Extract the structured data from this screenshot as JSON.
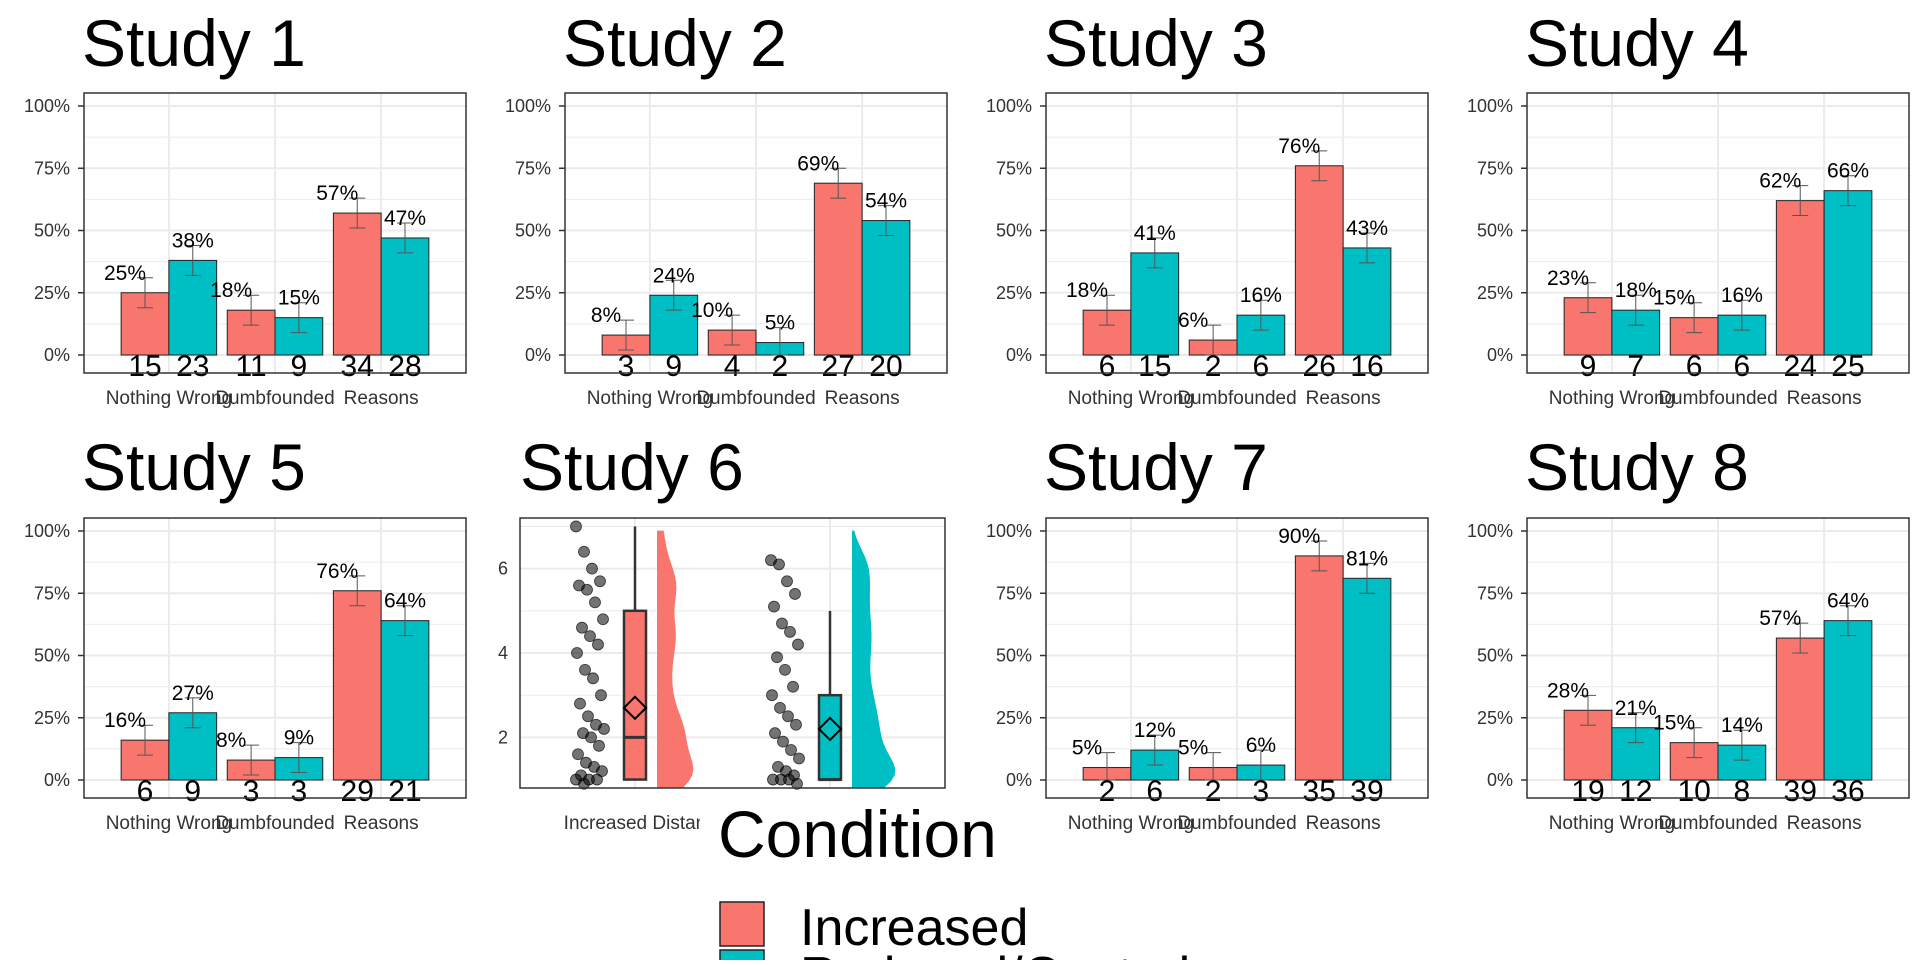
{
  "colors": {
    "increased": "#F8766D",
    "reduced": "#00BFC4",
    "grid": "#EBEBEB",
    "frame": "#333333",
    "errorbar": "#555555"
  },
  "legend": {
    "title": "Condition",
    "items": [
      "Increased",
      "Reduced/Control"
    ]
  },
  "chart_data": [
    {
      "type": "bar",
      "title": "Study 1",
      "categories": [
        "Nothing Wrong",
        "Dumbfounded",
        "Reasons"
      ],
      "ylim": [
        0,
        1
      ],
      "yticks": [
        "0%",
        "25%",
        "50%",
        "75%",
        "100%"
      ],
      "series": [
        {
          "values": [
            0.25,
            0.18,
            0.57
          ],
          "labels": [
            "25%",
            "18%",
            "57%"
          ],
          "counts": [
            15,
            11,
            34
          ]
        },
        {
          "values": [
            0.38,
            0.15,
            0.47
          ],
          "labels": [
            "38%",
            "15%",
            "47%"
          ],
          "counts": [
            23,
            9,
            28
          ]
        }
      ]
    },
    {
      "type": "bar",
      "title": "Study 2",
      "categories": [
        "Nothing Wrong",
        "Dumbfounded",
        "Reasons"
      ],
      "ylim": [
        0,
        1
      ],
      "yticks": [
        "0%",
        "25%",
        "50%",
        "75%",
        "100%"
      ],
      "series": [
        {
          "values": [
            0.08,
            0.1,
            0.69
          ],
          "labels": [
            "8%",
            "10%",
            "69%"
          ],
          "counts": [
            3,
            4,
            27
          ]
        },
        {
          "values": [
            0.24,
            0.05,
            0.54
          ],
          "labels": [
            "24%",
            "5%",
            "54%"
          ],
          "counts": [
            9,
            2,
            20
          ]
        }
      ]
    },
    {
      "type": "bar",
      "title": "Study 3",
      "categories": [
        "Nothing Wrong",
        "Dumbfounded",
        "Reasons"
      ],
      "ylim": [
        0,
        1
      ],
      "yticks": [
        "0%",
        "25%",
        "50%",
        "75%",
        "100%"
      ],
      "series": [
        {
          "values": [
            0.18,
            0.06,
            0.76
          ],
          "labels": [
            "18%",
            "6%",
            "76%"
          ],
          "counts": [
            6,
            2,
            26
          ]
        },
        {
          "values": [
            0.41,
            0.16,
            0.43
          ],
          "labels": [
            "41%",
            "16%",
            "43%"
          ],
          "counts": [
            15,
            6,
            16
          ]
        }
      ]
    },
    {
      "type": "bar",
      "title": "Study 4",
      "categories": [
        "Nothing Wrong",
        "Dumbfounded",
        "Reasons"
      ],
      "ylim": [
        0,
        1
      ],
      "yticks": [
        "0%",
        "25%",
        "50%",
        "75%",
        "100%"
      ],
      "series": [
        {
          "values": [
            0.23,
            0.15,
            0.62
          ],
          "labels": [
            "23%",
            "15%",
            "62%"
          ],
          "counts": [
            9,
            6,
            24
          ]
        },
        {
          "values": [
            0.18,
            0.16,
            0.66
          ],
          "labels": [
            "18%",
            "16%",
            "66%"
          ],
          "counts": [
            7,
            6,
            25
          ]
        }
      ]
    },
    {
      "type": "bar",
      "title": "Study 5",
      "categories": [
        "Nothing Wrong",
        "Dumbfounded",
        "Reasons"
      ],
      "ylim": [
        0,
        1
      ],
      "yticks": [
        "0%",
        "25%",
        "50%",
        "75%",
        "100%"
      ],
      "series": [
        {
          "values": [
            0.16,
            0.08,
            0.76
          ],
          "labels": [
            "16%",
            "8%",
            "76%"
          ],
          "counts": [
            6,
            3,
            29
          ]
        },
        {
          "values": [
            0.27,
            0.09,
            0.64
          ],
          "labels": [
            "27%",
            "9%",
            "64%"
          ],
          "counts": [
            9,
            3,
            21
          ]
        }
      ]
    },
    {
      "type": "raincloud",
      "title": "Study 6",
      "yticks": [
        "2",
        "4",
        "6"
      ],
      "ylim": [
        0.8,
        7.2
      ],
      "categories": [
        "Increased Distance",
        "Reduced/Control"
      ],
      "groups": [
        {
          "box": {
            "q1": 1.0,
            "median": 2.0,
            "q3": 5.0,
            "whisker_low": 1.0,
            "whisker_high": 7.0,
            "mean": 2.7
          },
          "points": [
            7.0,
            6.4,
            6.0,
            5.7,
            5.6,
            5.5,
            5.2,
            4.8,
            4.6,
            4.4,
            4.2,
            4.0,
            3.6,
            3.4,
            3.0,
            2.8,
            2.5,
            2.3,
            2.2,
            2.1,
            2.0,
            1.8,
            1.6,
            1.4,
            1.3,
            1.2,
            1.1,
            1.0,
            1.0,
            1.0,
            0.9
          ]
        },
        {
          "box": {
            "q1": 1.0,
            "median": 1.0,
            "q3": 3.0,
            "whisker_low": 1.0,
            "whisker_high": 5.0,
            "mean": 2.2
          },
          "points": [
            6.2,
            6.1,
            5.7,
            5.4,
            5.1,
            4.7,
            4.5,
            4.2,
            3.9,
            3.6,
            3.2,
            3.0,
            2.7,
            2.5,
            2.3,
            2.1,
            1.9,
            1.7,
            1.5,
            1.3,
            1.2,
            1.1,
            1.0,
            1.0,
            1.0,
            0.9
          ]
        }
      ]
    },
    {
      "type": "bar",
      "title": "Study 7",
      "categories": [
        "Nothing Wrong",
        "Dumbfounded",
        "Reasons"
      ],
      "ylim": [
        0,
        1
      ],
      "yticks": [
        "0%",
        "25%",
        "50%",
        "75%",
        "100%"
      ],
      "series": [
        {
          "values": [
            0.05,
            0.05,
            0.9
          ],
          "labels": [
            "5%",
            "5%",
            "90%"
          ],
          "counts": [
            2,
            2,
            35
          ]
        },
        {
          "values": [
            0.12,
            0.06,
            0.81
          ],
          "labels": [
            "12%",
            "6%",
            "81%"
          ],
          "counts": [
            6,
            3,
            39
          ]
        }
      ]
    },
    {
      "type": "bar",
      "title": "Study 8",
      "categories": [
        "Nothing Wrong",
        "Dumbfounded",
        "Reasons"
      ],
      "ylim": [
        0,
        1
      ],
      "yticks": [
        "0%",
        "25%",
        "50%",
        "75%",
        "100%"
      ],
      "series": [
        {
          "values": [
            0.28,
            0.15,
            0.57
          ],
          "labels": [
            "28%",
            "15%",
            "57%"
          ],
          "counts": [
            19,
            10,
            39
          ]
        },
        {
          "values": [
            0.21,
            0.14,
            0.64
          ],
          "labels": [
            "21%",
            "14%",
            "64%"
          ],
          "counts": [
            12,
            8,
            36
          ]
        }
      ]
    }
  ]
}
